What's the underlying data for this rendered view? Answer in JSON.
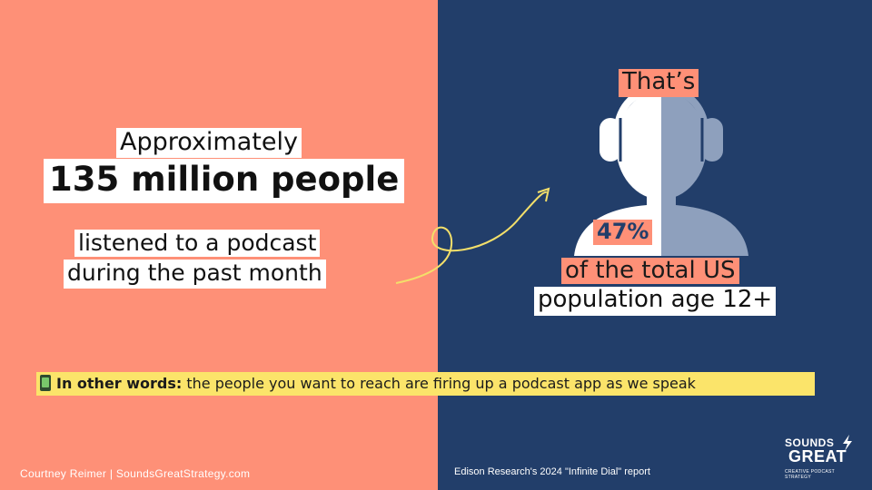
{
  "left": {
    "approx_label": "Approximately",
    "big_number": "135 million people",
    "line1": "listened to a podcast",
    "line2": "during the past month"
  },
  "right": {
    "thats": "That’s",
    "percent": "47%",
    "of_total": "of the total US",
    "population": "population age 12+"
  },
  "banner": {
    "icon": "mobile-phone-icon",
    "lead": "In other words:",
    "text": " the people you want to reach are firing up a podcast app as we speak"
  },
  "footer": {
    "author_credit": "Courtney Reimer  |  SoundsGreatStrategy.com",
    "source": "Edison Research's 2024 \"Infinite Dial\" report"
  },
  "logo": {
    "line1": "SOUNDS",
    "line2": "GREAT",
    "tagline": "CREATIVE PODCAST STRATEGY"
  },
  "colors": {
    "left_bg": "#fe9077",
    "right_bg": "#223e6a",
    "highlight_white": "#ffffff",
    "banner_yellow": "#fbe46a",
    "arrow": "#f3df6a",
    "silhouette_light": "#ffffff",
    "silhouette_shade": "#8ea0bd"
  }
}
